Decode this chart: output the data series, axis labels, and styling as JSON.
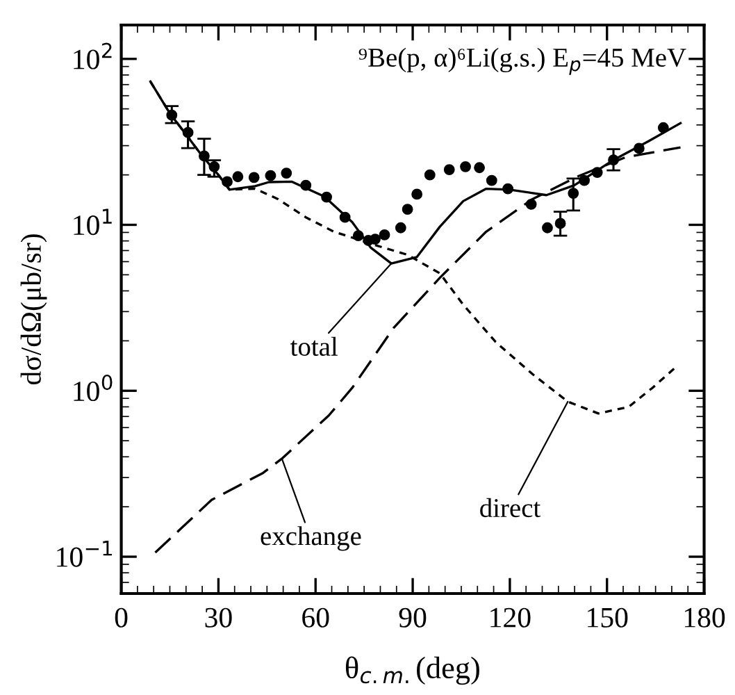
{
  "chart_data": {
    "type": "line",
    "title": "⁹Be(p, α)⁶Li(g.s.) E$_{p}$=45 MeV",
    "xlabel": "θ$_{c.m.}$(deg)",
    "ylabel": "dσ/dΩ(μb/sr)",
    "log": "y",
    "xlim": [
      0,
      180
    ],
    "ylim": [
      0.06,
      160
    ],
    "xticks": [
      0,
      30,
      60,
      90,
      120,
      150,
      180
    ],
    "yticks": [
      {
        "value": 0.1,
        "label": "10$^{−1}$"
      },
      {
        "value": 1,
        "label": "10$^{0}$"
      },
      {
        "value": 10,
        "label": "10$^{1}$"
      },
      {
        "value": 100,
        "label": "10$^{2}$"
      }
    ],
    "grid": false,
    "legend": false,
    "series": [
      {
        "type": "scatter",
        "color": "#000000",
        "marker": "circle",
        "x": [
          15.6,
          20.6,
          25.6,
          28.7,
          32.7,
          36,
          41,
          46.1,
          51,
          57,
          63.4,
          69.1,
          73.2,
          76.3,
          78.4,
          81.3,
          86.3,
          88.4,
          91.3,
          95.3,
          101.3,
          106.3,
          110.6,
          114.4,
          119.4,
          126.6,
          131.6,
          135.6,
          139.6,
          143,
          147,
          152,
          159.9,
          167.4
        ],
        "values": [
          45.8,
          36,
          26,
          22.4,
          18.2,
          19.5,
          19.3,
          19.8,
          20.5,
          17.3,
          14.7,
          11.1,
          8.6,
          8.05,
          8.2,
          8.7,
          9.6,
          12.4,
          15.3,
          20,
          21.5,
          22.4,
          22.1,
          18.5,
          16.5,
          13.3,
          9.6,
          10.2,
          15.5,
          18.5,
          20.7,
          24.6,
          28.9,
          38.5
        ],
        "errors": [
          [
            41,
            52
          ],
          [
            29,
            42
          ],
          [
            20,
            33
          ],
          [
            19.5,
            24.5
          ],
          null,
          null,
          null,
          null,
          null,
          null,
          null,
          null,
          null,
          null,
          null,
          null,
          null,
          null,
          null,
          null,
          null,
          null,
          null,
          null,
          null,
          null,
          null,
          [
            8.6,
            12
          ],
          [
            12.2,
            19
          ],
          null,
          null,
          [
            21.3,
            28.6
          ],
          null,
          null
        ]
      },
      {
        "color": "#000000",
        "line_style": "solid",
        "x": [
          9,
          15,
          20,
          25,
          30,
          33.4,
          41.3,
          45.6,
          52.7,
          62.7,
          71.3,
          77,
          83.4,
          91.3,
          98.4,
          105.6,
          112.7,
          119.9,
          131.3,
          139.9,
          152,
          162.7,
          172.7
        ],
        "values": [
          73,
          47,
          35,
          26,
          20,
          16.3,
          17.1,
          18.1,
          18.2,
          14.8,
          10.4,
          7.3,
          5.85,
          6.4,
          9.75,
          13.9,
          16.5,
          16.3,
          15.1,
          17.3,
          24.6,
          31.8,
          41
        ]
      },
      {
        "color": "#000000",
        "line_style": "dotted",
        "x": [
          9,
          15,
          20,
          25,
          30,
          33.4,
          41.3,
          48.4,
          57,
          65.6,
          74.1,
          78.4,
          88.4,
          98.4,
          105.6,
          115.6,
          127,
          137.9,
          147.3,
          156.7,
          164,
          171.3
        ],
        "values": [
          73,
          47,
          35,
          26,
          20,
          16.3,
          16.5,
          14.3,
          11.1,
          9.1,
          8.05,
          7.55,
          6.6,
          5.1,
          3.3,
          1.97,
          1.26,
          0.86,
          0.73,
          0.8,
          1.04,
          1.39
        ]
      },
      {
        "color": "#000000",
        "line_style": "dashed",
        "x": [
          10.5,
          27.9,
          43.8,
          49.6,
          64.1,
          71.3,
          84.1,
          98.4,
          112.7,
          127,
          141.3,
          155.6,
          172.7
        ],
        "values": [
          0.106,
          0.22,
          0.32,
          0.39,
          0.71,
          1.04,
          2.39,
          4.8,
          9.1,
          14.3,
          19.7,
          25.5,
          29.3
        ]
      }
    ],
    "annotations": [
      {
        "text": "total",
        "x": 83.4,
        "y": 5.85
      },
      {
        "text": "direct",
        "x": 137.9,
        "y": 0.86
      },
      {
        "text": "exchange",
        "x": 49.6,
        "y": 0.39
      }
    ]
  }
}
